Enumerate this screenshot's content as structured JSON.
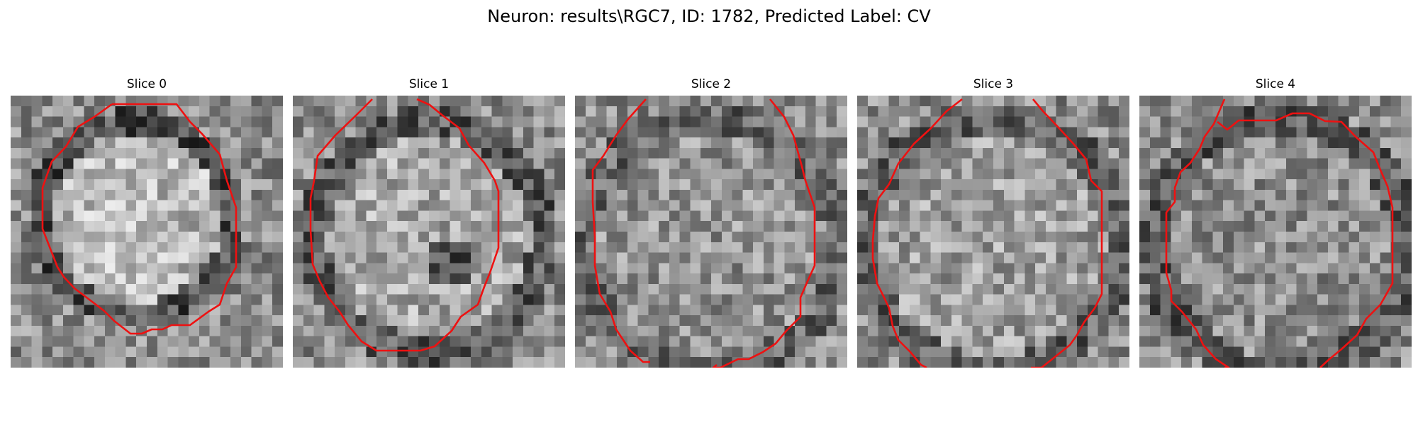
{
  "figure": {
    "title": "Neuron: results\\RGC7, ID: 1782, Predicted Label: CV",
    "contour_color": "#ee1111",
    "panels": [
      {
        "title": "Slice 0"
      },
      {
        "title": "Slice 1"
      },
      {
        "title": "Slice 2"
      },
      {
        "title": "Slice 3"
      },
      {
        "title": "Slice 4"
      }
    ]
  }
}
